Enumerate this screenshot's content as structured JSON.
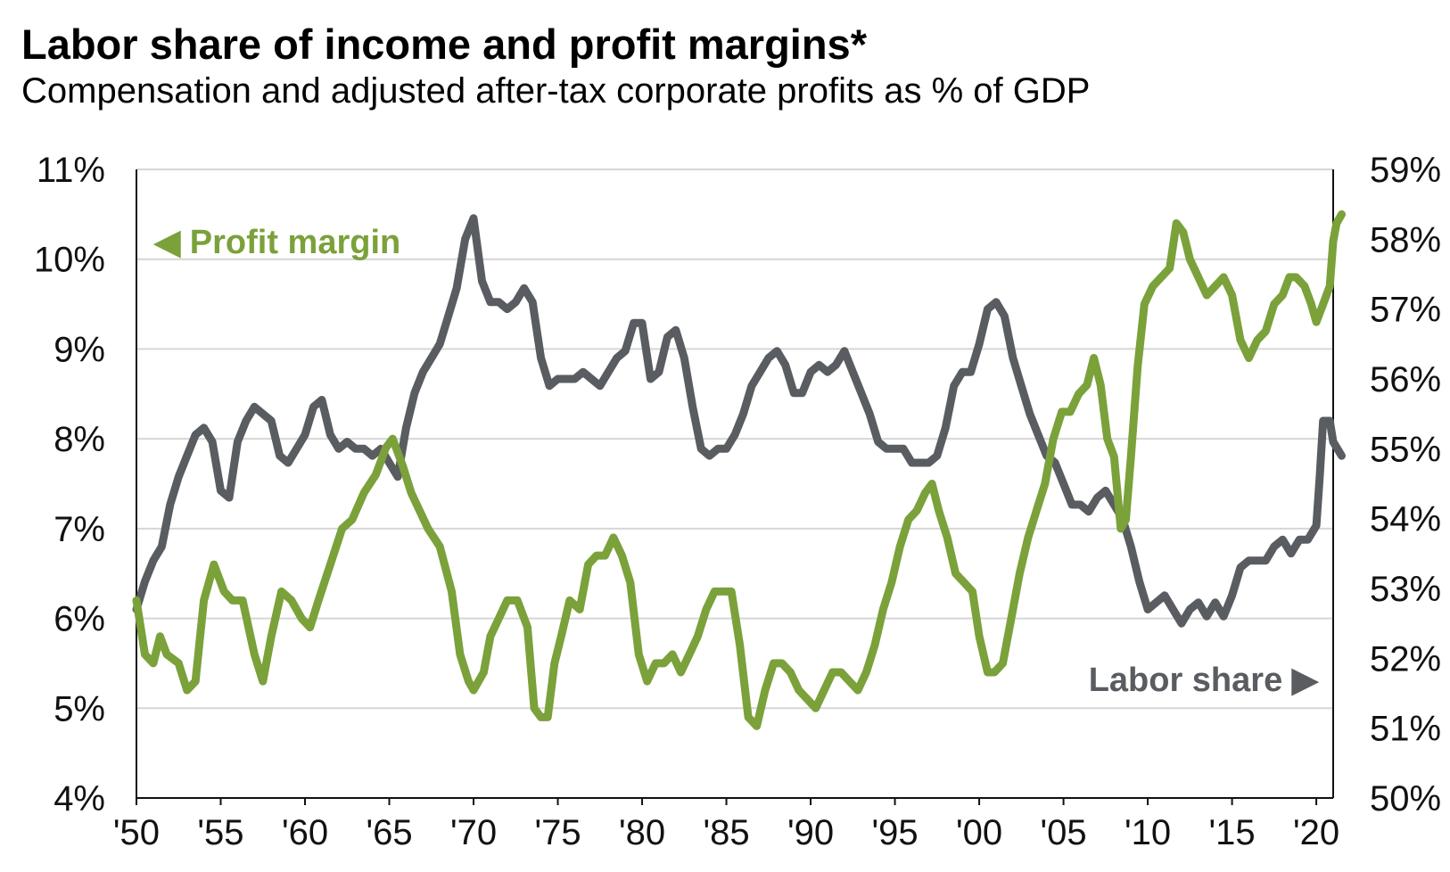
{
  "chart_data": {
    "type": "line",
    "title": "Labor share of income and profit margins*",
    "subtitle": "Compensation and adjusted after-tax corporate profits as % of GDP",
    "x_range": [
      1950,
      2021
    ],
    "x_tick_labels": [
      "'50",
      "'55",
      "'60",
      "'65",
      "'70",
      "'75",
      "'80",
      "'85",
      "'90",
      "'95",
      "'00",
      "'05",
      "'10",
      "'15",
      "'20"
    ],
    "x_tick_years": [
      1950,
      1955,
      1960,
      1965,
      1970,
      1975,
      1980,
      1985,
      1990,
      1995,
      2000,
      2005,
      2010,
      2015,
      2020
    ],
    "y_left": {
      "range": [
        4,
        11
      ],
      "tick_labels": [
        "4%",
        "5%",
        "6%",
        "7%",
        "8%",
        "9%",
        "10%",
        "11%"
      ]
    },
    "y_right": {
      "range": [
        50,
        59
      ],
      "tick_labels": [
        "50%",
        "51%",
        "52%",
        "53%",
        "54%",
        "55%",
        "56%",
        "57%",
        "58%",
        "59%"
      ]
    },
    "grid": true,
    "series": [
      {
        "name": "Profit margin",
        "label": "◀ Profit margin",
        "axis": "left",
        "color": "#7ba13a",
        "points": [
          [
            1950.0,
            6.2
          ],
          [
            1950.5,
            5.6
          ],
          [
            1951.0,
            5.5
          ],
          [
            1951.4,
            5.8
          ],
          [
            1951.8,
            5.6
          ],
          [
            1952.5,
            5.5
          ],
          [
            1953.0,
            5.2
          ],
          [
            1953.5,
            5.3
          ],
          [
            1954.0,
            6.2
          ],
          [
            1954.6,
            6.6
          ],
          [
            1955.2,
            6.3
          ],
          [
            1955.7,
            6.2
          ],
          [
            1956.3,
            6.2
          ],
          [
            1957.0,
            5.6
          ],
          [
            1957.5,
            5.3
          ],
          [
            1958.0,
            5.8
          ],
          [
            1958.6,
            6.3
          ],
          [
            1959.2,
            6.2
          ],
          [
            1959.8,
            6.0
          ],
          [
            1960.3,
            5.9
          ],
          [
            1960.8,
            6.2
          ],
          [
            1961.5,
            6.6
          ],
          [
            1962.2,
            7.0
          ],
          [
            1962.8,
            7.1
          ],
          [
            1963.5,
            7.4
          ],
          [
            1964.2,
            7.6
          ],
          [
            1964.8,
            7.9
          ],
          [
            1965.2,
            8.0
          ],
          [
            1965.8,
            7.7
          ],
          [
            1966.3,
            7.4
          ],
          [
            1966.8,
            7.2
          ],
          [
            1967.3,
            7.0
          ],
          [
            1968.0,
            6.8
          ],
          [
            1968.7,
            6.3
          ],
          [
            1969.2,
            5.6
          ],
          [
            1969.7,
            5.3
          ],
          [
            1970.0,
            5.2
          ],
          [
            1970.6,
            5.4
          ],
          [
            1971.0,
            5.8
          ],
          [
            1971.5,
            6.0
          ],
          [
            1972.0,
            6.2
          ],
          [
            1972.6,
            6.2
          ],
          [
            1973.2,
            5.9
          ],
          [
            1973.6,
            5.0
          ],
          [
            1974.0,
            4.9
          ],
          [
            1974.4,
            4.9
          ],
          [
            1974.8,
            5.5
          ],
          [
            1975.2,
            5.8
          ],
          [
            1975.7,
            6.2
          ],
          [
            1976.3,
            6.1
          ],
          [
            1976.8,
            6.6
          ],
          [
            1977.3,
            6.7
          ],
          [
            1977.8,
            6.7
          ],
          [
            1978.3,
            6.9
          ],
          [
            1978.8,
            6.7
          ],
          [
            1979.3,
            6.4
          ],
          [
            1979.8,
            5.6
          ],
          [
            1980.3,
            5.3
          ],
          [
            1980.8,
            5.5
          ],
          [
            1981.3,
            5.5
          ],
          [
            1981.8,
            5.6
          ],
          [
            1982.3,
            5.4
          ],
          [
            1982.8,
            5.6
          ],
          [
            1983.3,
            5.8
          ],
          [
            1983.8,
            6.1
          ],
          [
            1984.3,
            6.3
          ],
          [
            1984.8,
            6.3
          ],
          [
            1985.3,
            6.3
          ],
          [
            1985.8,
            5.7
          ],
          [
            1986.3,
            4.9
          ],
          [
            1986.8,
            4.8
          ],
          [
            1987.3,
            5.2
          ],
          [
            1987.8,
            5.5
          ],
          [
            1988.3,
            5.5
          ],
          [
            1988.8,
            5.4
          ],
          [
            1989.3,
            5.2
          ],
          [
            1989.8,
            5.1
          ],
          [
            1990.3,
            5.0
          ],
          [
            1990.8,
            5.2
          ],
          [
            1991.3,
            5.4
          ],
          [
            1991.8,
            5.4
          ],
          [
            1992.3,
            5.3
          ],
          [
            1992.8,
            5.2
          ],
          [
            1993.3,
            5.4
          ],
          [
            1993.8,
            5.7
          ],
          [
            1994.3,
            6.1
          ],
          [
            1994.8,
            6.4
          ],
          [
            1995.3,
            6.8
          ],
          [
            1995.8,
            7.1
          ],
          [
            1996.3,
            7.2
          ],
          [
            1996.8,
            7.4
          ],
          [
            1997.2,
            7.5
          ],
          [
            1997.6,
            7.2
          ],
          [
            1998.1,
            6.9
          ],
          [
            1998.6,
            6.5
          ],
          [
            1999.1,
            6.4
          ],
          [
            1999.6,
            6.3
          ],
          [
            2000.0,
            5.8
          ],
          [
            2000.5,
            5.4
          ],
          [
            2000.9,
            5.4
          ],
          [
            2001.4,
            5.5
          ],
          [
            2001.9,
            6.0
          ],
          [
            2002.4,
            6.5
          ],
          [
            2002.9,
            6.9
          ],
          [
            2003.4,
            7.2
          ],
          [
            2003.9,
            7.5
          ],
          [
            2004.4,
            8.0
          ],
          [
            2004.9,
            8.3
          ],
          [
            2005.4,
            8.3
          ],
          [
            2005.9,
            8.5
          ],
          [
            2006.4,
            8.6
          ],
          [
            2006.8,
            8.9
          ],
          [
            2007.2,
            8.6
          ],
          [
            2007.6,
            8.0
          ],
          [
            2008.0,
            7.8
          ],
          [
            2008.4,
            7.0
          ],
          [
            2008.7,
            7.1
          ],
          [
            2009.0,
            7.8
          ],
          [
            2009.4,
            8.8
          ],
          [
            2009.8,
            9.5
          ],
          [
            2010.3,
            9.7
          ],
          [
            2010.8,
            9.8
          ],
          [
            2011.3,
            9.9
          ],
          [
            2011.7,
            10.4
          ],
          [
            2012.1,
            10.3
          ],
          [
            2012.5,
            10.0
          ],
          [
            2013.0,
            9.8
          ],
          [
            2013.5,
            9.6
          ],
          [
            2014.0,
            9.7
          ],
          [
            2014.5,
            9.8
          ],
          [
            2015.0,
            9.6
          ],
          [
            2015.5,
            9.1
          ],
          [
            2016.0,
            8.9
          ],
          [
            2016.5,
            9.1
          ],
          [
            2017.0,
            9.2
          ],
          [
            2017.5,
            9.5
          ],
          [
            2018.0,
            9.6
          ],
          [
            2018.4,
            9.8
          ],
          [
            2018.8,
            9.8
          ],
          [
            2019.3,
            9.7
          ],
          [
            2019.7,
            9.5
          ],
          [
            2020.0,
            9.3
          ],
          [
            2020.4,
            9.5
          ],
          [
            2020.8,
            9.7
          ],
          [
            2021.0,
            10.2
          ],
          [
            2021.2,
            10.4
          ],
          [
            2021.5,
            10.5
          ]
        ]
      },
      {
        "name": "Labor share",
        "label": "Labor share ▶",
        "axis": "right",
        "color": "#595c60",
        "points": [
          [
            1950.0,
            52.7
          ],
          [
            1950.5,
            53.1
          ],
          [
            1951.0,
            53.4
          ],
          [
            1951.5,
            53.6
          ],
          [
            1952.0,
            54.2
          ],
          [
            1952.5,
            54.6
          ],
          [
            1953.0,
            54.9
          ],
          [
            1953.5,
            55.2
          ],
          [
            1954.0,
            55.3
          ],
          [
            1954.5,
            55.1
          ],
          [
            1955.0,
            54.4
          ],
          [
            1955.5,
            54.3
          ],
          [
            1956.0,
            55.1
          ],
          [
            1956.5,
            55.4
          ],
          [
            1957.0,
            55.6
          ],
          [
            1957.5,
            55.5
          ],
          [
            1958.0,
            55.4
          ],
          [
            1958.5,
            54.9
          ],
          [
            1959.0,
            54.8
          ],
          [
            1959.5,
            55.0
          ],
          [
            1960.0,
            55.2
          ],
          [
            1960.5,
            55.6
          ],
          [
            1961.0,
            55.7
          ],
          [
            1961.5,
            55.2
          ],
          [
            1962.0,
            55.0
          ],
          [
            1962.5,
            55.1
          ],
          [
            1963.0,
            55.0
          ],
          [
            1963.5,
            55.0
          ],
          [
            1964.0,
            54.9
          ],
          [
            1964.5,
            55.0
          ],
          [
            1965.0,
            54.8
          ],
          [
            1965.5,
            54.6
          ],
          [
            1966.0,
            55.3
          ],
          [
            1966.5,
            55.8
          ],
          [
            1967.0,
            56.1
          ],
          [
            1967.5,
            56.3
          ],
          [
            1968.0,
            56.5
          ],
          [
            1968.5,
            56.9
          ],
          [
            1969.0,
            57.3
          ],
          [
            1969.5,
            58.0
          ],
          [
            1970.0,
            58.3
          ],
          [
            1970.5,
            57.4
          ],
          [
            1971.0,
            57.1
          ],
          [
            1971.5,
            57.1
          ],
          [
            1972.0,
            57.0
          ],
          [
            1972.5,
            57.1
          ],
          [
            1973.0,
            57.3
          ],
          [
            1973.5,
            57.1
          ],
          [
            1974.0,
            56.3
          ],
          [
            1974.5,
            55.9
          ],
          [
            1975.0,
            56.0
          ],
          [
            1975.5,
            56.0
          ],
          [
            1976.0,
            56.0
          ],
          [
            1976.5,
            56.1
          ],
          [
            1977.0,
            56.0
          ],
          [
            1977.5,
            55.9
          ],
          [
            1978.0,
            56.1
          ],
          [
            1978.5,
            56.3
          ],
          [
            1979.0,
            56.4
          ],
          [
            1979.5,
            56.8
          ],
          [
            1980.0,
            56.8
          ],
          [
            1980.5,
            56.0
          ],
          [
            1981.0,
            56.1
          ],
          [
            1981.5,
            56.6
          ],
          [
            1982.0,
            56.7
          ],
          [
            1982.5,
            56.3
          ],
          [
            1983.0,
            55.6
          ],
          [
            1983.5,
            55.0
          ],
          [
            1984.0,
            54.9
          ],
          [
            1984.5,
            55.0
          ],
          [
            1985.0,
            55.0
          ],
          [
            1985.5,
            55.2
          ],
          [
            1986.0,
            55.5
          ],
          [
            1986.5,
            55.9
          ],
          [
            1987.0,
            56.1
          ],
          [
            1987.5,
            56.3
          ],
          [
            1988.0,
            56.4
          ],
          [
            1988.5,
            56.2
          ],
          [
            1989.0,
            55.8
          ],
          [
            1989.5,
            55.8
          ],
          [
            1990.0,
            56.1
          ],
          [
            1990.5,
            56.2
          ],
          [
            1991.0,
            56.1
          ],
          [
            1991.5,
            56.2
          ],
          [
            1992.0,
            56.4
          ],
          [
            1992.5,
            56.1
          ],
          [
            1993.0,
            55.8
          ],
          [
            1993.5,
            55.5
          ],
          [
            1994.0,
            55.1
          ],
          [
            1994.5,
            55.0
          ],
          [
            1995.0,
            55.0
          ],
          [
            1995.5,
            55.0
          ],
          [
            1996.0,
            54.8
          ],
          [
            1996.5,
            54.8
          ],
          [
            1997.0,
            54.8
          ],
          [
            1997.5,
            54.9
          ],
          [
            1998.0,
            55.3
          ],
          [
            1998.5,
            55.9
          ],
          [
            1999.0,
            56.1
          ],
          [
            1999.5,
            56.1
          ],
          [
            2000.0,
            56.5
          ],
          [
            2000.5,
            57.0
          ],
          [
            2001.0,
            57.1
          ],
          [
            2001.5,
            56.9
          ],
          [
            2002.0,
            56.3
          ],
          [
            2002.5,
            55.9
          ],
          [
            2003.0,
            55.5
          ],
          [
            2003.5,
            55.2
          ],
          [
            2004.0,
            54.9
          ],
          [
            2004.5,
            54.8
          ],
          [
            2005.0,
            54.5
          ],
          [
            2005.5,
            54.2
          ],
          [
            2006.0,
            54.2
          ],
          [
            2006.5,
            54.1
          ],
          [
            2007.0,
            54.3
          ],
          [
            2007.5,
            54.4
          ],
          [
            2008.0,
            54.2
          ],
          [
            2008.5,
            54.0
          ],
          [
            2009.0,
            53.6
          ],
          [
            2009.5,
            53.1
          ],
          [
            2010.0,
            52.7
          ],
          [
            2010.5,
            52.8
          ],
          [
            2011.0,
            52.9
          ],
          [
            2011.5,
            52.7
          ],
          [
            2012.0,
            52.5
          ],
          [
            2012.5,
            52.7
          ],
          [
            2013.0,
            52.8
          ],
          [
            2013.5,
            52.6
          ],
          [
            2014.0,
            52.8
          ],
          [
            2014.5,
            52.6
          ],
          [
            2015.0,
            52.9
          ],
          [
            2015.5,
            53.3
          ],
          [
            2016.0,
            53.4
          ],
          [
            2016.5,
            53.4
          ],
          [
            2017.0,
            53.4
          ],
          [
            2017.5,
            53.6
          ],
          [
            2018.0,
            53.7
          ],
          [
            2018.5,
            53.5
          ],
          [
            2019.0,
            53.7
          ],
          [
            2019.5,
            53.7
          ],
          [
            2020.0,
            53.9
          ],
          [
            2020.2,
            54.6
          ],
          [
            2020.4,
            55.4
          ],
          [
            2020.8,
            55.4
          ],
          [
            2021.0,
            55.1
          ],
          [
            2021.5,
            54.9
          ]
        ]
      }
    ]
  }
}
